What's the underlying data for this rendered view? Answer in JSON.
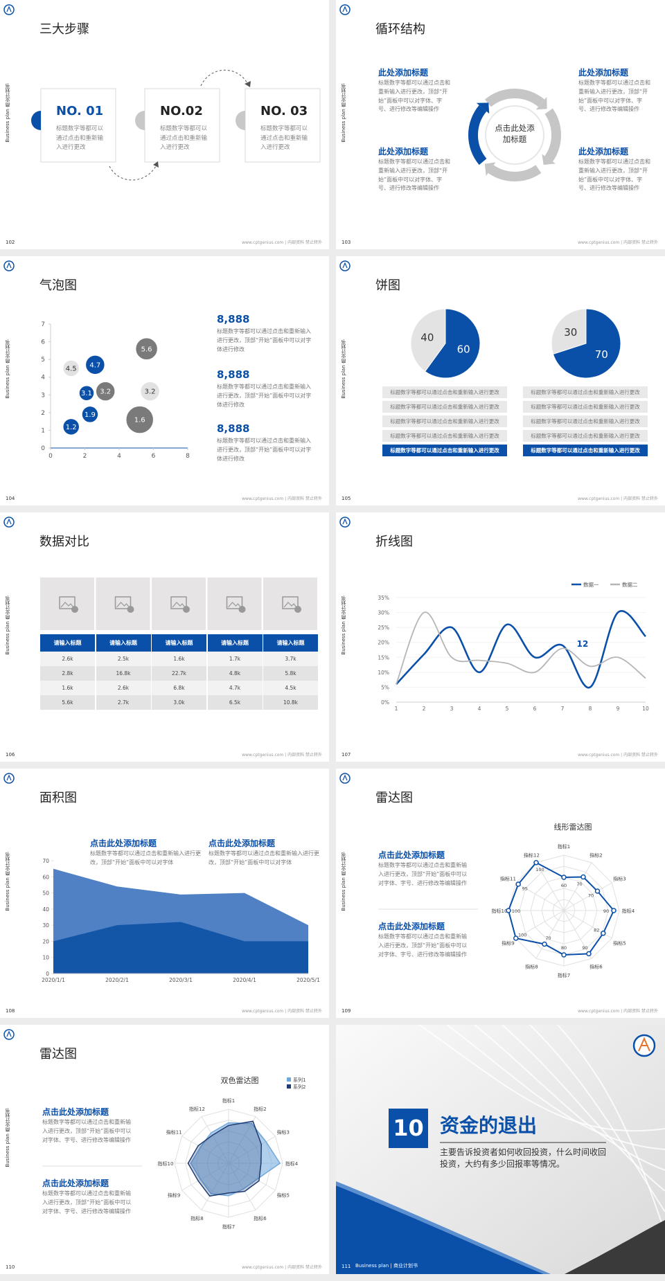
{
  "common": {
    "side_label": "Business plan 商业计划书",
    "footer": "www.cptgenius.com | 内部资料 禁止转外"
  },
  "slides": [
    {
      "page": "102",
      "title": "三大步骤",
      "steps": [
        {
          "label": "NO. 01",
          "text": "标题数字等都可以通过点击和重新输入进行更改"
        },
        {
          "label": "NO.02",
          "text": "标题数字等都可以通过点击和重新输入进行更改"
        },
        {
          "label": "NO. 03",
          "text": "标题数字等都可以通过点击和重新输入进行更改"
        }
      ]
    },
    {
      "page": "103",
      "title": "循环结构",
      "center": "点击此处添加标题",
      "blocks": [
        {
          "heading": "此处添加标题",
          "text": "标题数字等都可以通过点击和重新输入进行更改，顶部“开始”面板中可以对字体、字号、进行修改等编辑操作"
        },
        {
          "heading": "此处添加标题",
          "text": "标题数字等都可以通过点击和重新输入进行更改，顶部“开始”面板中可以对字体、字号、进行修改等编辑操作"
        },
        {
          "heading": "此处添加标题",
          "text": "标题数字等都可以通过点击和重新输入进行更改，顶部“开始”面板中可以对字体、字号、进行修改等编辑操作"
        },
        {
          "heading": "此处添加标题",
          "text": "标题数字等都可以通过点击和重新输入进行更改，顶部“开始”面板中可以对字体、字号、进行修改等编辑操作"
        }
      ]
    },
    {
      "page": "104",
      "title": "气泡图",
      "chart": {
        "type": "bubble",
        "x": [
          1.2,
          2.6,
          5.6,
          2.1,
          3.2,
          5.8,
          2.3,
          5.2,
          1.2
        ],
        "y": [
          4.5,
          4.7,
          5.6,
          3.1,
          3.2,
          3.2,
          1.9,
          1.6,
          1.2
        ],
        "sizes": [
          12,
          14,
          16,
          11,
          14,
          14,
          12,
          20,
          12
        ],
        "colors": [
          "#e2e2e2",
          "#0a4fa8",
          "#7a7a7a",
          "#0a4fa8",
          "#7a7a7a",
          "#e2e2e2",
          "#0a4fa8",
          "#7a7a7a",
          "#0a4fa8"
        ],
        "xlim": [
          0,
          8
        ],
        "xticks": [
          0,
          2,
          4,
          6,
          8
        ],
        "ylim": [
          0,
          7
        ],
        "yticks": [
          0,
          1,
          2,
          3,
          4,
          5,
          6,
          7
        ]
      },
      "notes": [
        {
          "heading": "8,888",
          "text": "标题数字等都可以通过点击和重新输入进行更改，顶部“开始”面板中可以对字体进行修改"
        },
        {
          "heading": "8,888",
          "text": "标题数字等都可以通过点击和重新输入进行更改，顶部“开始”面板中可以对字体进行修改"
        },
        {
          "heading": "8,888",
          "text": "标题数字等都可以通过点击和重新输入进行更改，顶部“开始”面板中可以对字体进行修改"
        }
      ]
    },
    {
      "page": "105",
      "title": "饼图",
      "pies": [
        {
          "type": "pie",
          "values": [
            40,
            60
          ],
          "colors": [
            "#e3e3e3",
            "#0a4fa8"
          ],
          "rows": [
            "标题数字等都可以通过点击和重新输入进行更改",
            "标题数字等都可以通过点击和重新输入进行更改",
            "标题数字等都可以通过点击和重新输入进行更改",
            "标题数字等都可以通过点击和重新输入进行更改",
            "标题数字等都可以通过点击和重新输入进行更改"
          ]
        },
        {
          "type": "pie",
          "values": [
            30,
            70
          ],
          "colors": [
            "#e3e3e3",
            "#0a4fa8"
          ],
          "rows": [
            "标题数字等都可以通过点击和重新输入进行更改",
            "标题数字等都可以通过点击和重新输入进行更改",
            "标题数字等都可以通过点击和重新输入进行更改",
            "标题数字等都可以通过点击和重新输入进行更改",
            "标题数字等都可以通过点击和重新输入进行更改"
          ]
        }
      ]
    },
    {
      "page": "106",
      "title": "数据对比",
      "table": {
        "header": [
          "请输入标题",
          "请输入标题",
          "请输入标题",
          "请输入标题",
          "请输入标题"
        ],
        "rows": [
          [
            "2.6k",
            "2.5k",
            "1.6k",
            "1.7k",
            "3.7k"
          ],
          [
            "2.8k",
            "16.8k",
            "22.7k",
            "4.8k",
            "5.8k"
          ],
          [
            "1.6k",
            "2.6k",
            "6.8k",
            "4.7k",
            "4.5k"
          ],
          [
            "5.6k",
            "2.7k",
            "3.0k",
            "6.5k",
            "10.8k"
          ]
        ]
      }
    },
    {
      "page": "107",
      "title": "折线图",
      "chart": {
        "type": "line",
        "x": [
          1,
          2,
          3,
          4,
          5,
          6,
          7,
          8,
          9,
          10
        ],
        "xlim": [
          1,
          10
        ],
        "xticks": [
          1,
          2,
          3,
          4,
          5,
          6,
          7,
          8,
          9,
          10
        ],
        "ylim": [
          0,
          35
        ],
        "yticks": [
          {
            "value": 0,
            "label": "0%"
          },
          {
            "value": 5,
            "label": "5%"
          },
          {
            "value": 10,
            "label": "10%"
          },
          {
            "value": 15,
            "label": "15%"
          },
          {
            "value": 20,
            "label": "20%"
          },
          {
            "value": 25,
            "label": "25%"
          },
          {
            "value": 30,
            "label": "30%"
          },
          {
            "value": 35,
            "label": "35%"
          }
        ],
        "series": [
          {
            "name": "数据一",
            "color": "#0a4fa8",
            "values": [
              6,
              16,
              25,
              10,
              26,
              15,
              19,
              5,
              30,
              22
            ]
          },
          {
            "name": "数据二",
            "color": "#b5b5b5",
            "values": [
              6,
              30,
              15,
              14,
              13,
              10,
              18,
              12,
              15,
              8
            ]
          }
        ],
        "annotation": "12"
      }
    },
    {
      "page": "108",
      "title": "面积图",
      "notes": [
        {
          "heading": "点击此处添加标题",
          "text": "标题数字等都可以通过点击和重新输入进行更改，顶部“开始”面板中可以对字体"
        },
        {
          "heading": "点击此处添加标题",
          "text": "标题数字等都可以通过点击和重新输入进行更改，顶部“开始”面板中可以对字体"
        }
      ],
      "chart": {
        "type": "area",
        "categories": [
          "2020/1/1",
          "2020/2/1",
          "2020/3/1",
          "2020/4/1",
          "2020/5/1"
        ],
        "series": [
          {
            "color": "#4f81c4",
            "values": [
              65,
              54,
              49,
              50,
              30
            ]
          },
          {
            "color": "#1356a8",
            "values": [
              20,
              30,
              32,
              20,
              20
            ]
          }
        ],
        "ylim": [
          0,
          70
        ],
        "yticks": [
          0,
          10,
          20,
          30,
          40,
          50,
          60,
          70
        ]
      }
    },
    {
      "page": "109",
      "title": "雷达图",
      "notes": [
        {
          "heading": "点击此处添加标题",
          "text": "标题数字等都可以通过点击和重新输入进行更改，顶部“开始”面板中可以对字体、字号、进行修改等编辑操作"
        },
        {
          "heading": "点击此处添加标题",
          "text": "标题数字等都可以通过点击和重新输入进行更改，顶部“开始”面板中可以对字体、字号、进行修改等编辑操作"
        }
      ],
      "chart": {
        "type": "radar",
        "title": "线形雷达图",
        "categories": [
          "指标1",
          "指标2",
          "指标3",
          "指标4",
          "指标5",
          "指标6",
          "指标7",
          "指标8",
          "指标9",
          "指标10",
          "指标11",
          "指标12"
        ],
        "values": [
          60,
          70,
          70,
          90,
          82,
          90,
          80,
          70,
          100,
          100,
          95,
          100
        ],
        "rlim": [
          0,
          100
        ],
        "color": "#0a4fa8"
      }
    },
    {
      "page": "110",
      "title": "雷达图",
      "notes": [
        {
          "heading": "点击此处添加标题",
          "text": "标题数字等都可以通过点击和重新输入进行更改，顶部“开始”面板中可以对字体、字号、进行修改等编辑操作"
        },
        {
          "heading": "点击此处添加标题",
          "text": "标题数字等都可以通过点击和重新输入进行更改，顶部“开始”面板中可以对字体、字号、进行修改等编辑操作"
        }
      ],
      "chart": {
        "type": "radar",
        "title": "双色雷达图",
        "categories": [
          "指标1",
          "指标2",
          "指标3",
          "指标4",
          "指标5",
          "指标6",
          "指标7",
          "指标8",
          "指标9",
          "指标10",
          "指标11",
          "指标12"
        ],
        "series": [
          {
            "name": "系列1",
            "color": "#6fa8dc",
            "values": [
              75,
              85,
              80,
              95,
              60,
              55,
              60,
              65,
              60,
              70,
              60,
              65
            ]
          },
          {
            "name": "系列2",
            "color": "#1f3b73",
            "values": [
              70,
              90,
              70,
              60,
              65,
              60,
              55,
              70,
              65,
              75,
              65,
              60
            ]
          }
        ],
        "rlim": [
          0,
          100
        ]
      }
    },
    {
      "page": "111",
      "number": "10",
      "title": "资金的退出",
      "text": "主要告诉投资者如何收回投资，什么时间收回投资，大约有多少回报率等情况。",
      "footer": "Business plan | 商业计划书"
    }
  ]
}
